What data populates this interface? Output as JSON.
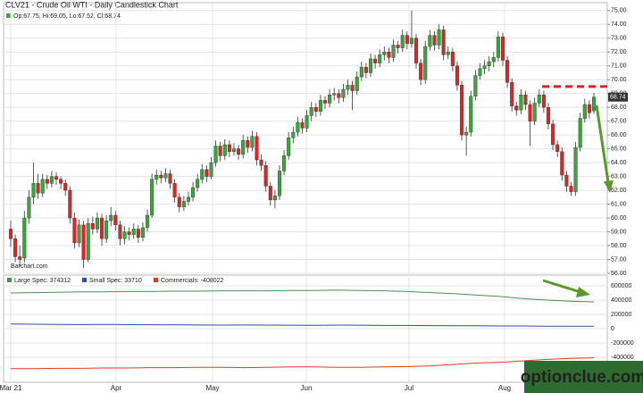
{
  "chart_data": {
    "type": "candlestick",
    "title": "CLV21 - Crude Oil WTI - Daily Candlestick Chart",
    "ohlc_legend": "Op:67.75, Hi:69.05, Lo:67.52, Cl:68.74",
    "watermark": "Barchart.com",
    "logo": "optionclue.com",
    "up_color": "#3aa63a",
    "down_color": "#d92626",
    "level_line": 69.5,
    "level_color": "#e02020",
    "grid": true,
    "x_labels": [
      "Mar 21",
      "Apr",
      "May",
      "Jun",
      "Jul",
      "Aug"
    ],
    "ylim": [
      56,
      75.5
    ],
    "yticks": [
      {
        "value": 56,
        "label": "56.00"
      },
      {
        "value": 57,
        "label": "57.00"
      },
      {
        "value": 58,
        "label": "58.00"
      },
      {
        "value": 59,
        "label": "59.00"
      },
      {
        "value": 60,
        "label": "60.00"
      },
      {
        "value": 61,
        "label": "61.00"
      },
      {
        "value": 62,
        "label": "62.00"
      },
      {
        "value": 63,
        "label": "63.00"
      },
      {
        "value": 64,
        "label": "64.00"
      },
      {
        "value": 65,
        "label": "65.00"
      },
      {
        "value": 66,
        "label": "66.00"
      },
      {
        "value": 67,
        "label": "67.00"
      },
      {
        "value": 68,
        "label": "68.00"
      },
      {
        "value": 69,
        "label": "69.00"
      },
      {
        "value": 70,
        "label": "70.00"
      },
      {
        "value": 71,
        "label": "71.00"
      },
      {
        "value": 72,
        "label": "72.00"
      },
      {
        "value": 73,
        "label": "73.00"
      },
      {
        "value": 74,
        "label": "74.00"
      },
      {
        "value": 75,
        "label": "75.00"
      }
    ],
    "ohlc": [
      [
        59.2,
        59.8,
        57.9,
        58.5
      ],
      [
        58.5,
        58.8,
        56.8,
        57.2
      ],
      [
        57.2,
        58.0,
        56.5,
        57.0
      ],
      [
        57.1,
        60.5,
        56.8,
        60.0
      ],
      [
        60.0,
        62.0,
        59.6,
        61.5
      ],
      [
        61.5,
        64.0,
        61.0,
        62.5
      ],
      [
        62.5,
        63.2,
        61.4,
        61.8
      ],
      [
        61.8,
        63.2,
        61.5,
        62.8
      ],
      [
        62.8,
        63.1,
        62.1,
        62.5
      ],
      [
        62.5,
        63.4,
        62.2,
        63.0
      ],
      [
        63.0,
        63.3,
        62.4,
        62.8
      ],
      [
        62.8,
        63.0,
        62.1,
        62.5
      ],
      [
        62.5,
        62.8,
        61.6,
        62.0
      ],
      [
        62.0,
        62.3,
        59.6,
        60.0
      ],
      [
        60.0,
        60.4,
        57.8,
        58.2
      ],
      [
        58.2,
        59.9,
        57.9,
        59.5
      ],
      [
        59.5,
        59.8,
        56.4,
        57.0
      ],
      [
        57.0,
        60.0,
        56.8,
        59.6
      ],
      [
        59.6,
        60.1,
        58.8,
        59.2
      ],
      [
        59.2,
        60.4,
        58.9,
        60.0
      ],
      [
        60.0,
        60.3,
        58.0,
        58.5
      ],
      [
        58.5,
        60.2,
        58.2,
        59.8
      ],
      [
        59.8,
        60.8,
        59.4,
        60.2
      ],
      [
        60.2,
        60.5,
        59.1,
        59.5
      ],
      [
        59.5,
        59.8,
        58.0,
        58.5
      ],
      [
        58.5,
        59.4,
        58.1,
        59.0
      ],
      [
        59.0,
        59.3,
        58.4,
        58.8
      ],
      [
        58.8,
        59.6,
        58.5,
        59.2
      ],
      [
        59.2,
        59.5,
        58.2,
        58.6
      ],
      [
        58.6,
        59.7,
        58.3,
        59.3
      ],
      [
        59.3,
        60.6,
        59.0,
        60.2
      ],
      [
        60.2,
        63.2,
        60.0,
        62.8
      ],
      [
        62.8,
        63.5,
        62.4,
        63.1
      ],
      [
        63.1,
        63.4,
        62.5,
        62.9
      ],
      [
        62.9,
        63.6,
        62.6,
        63.2
      ],
      [
        63.2,
        63.5,
        62.1,
        62.5
      ],
      [
        62.5,
        62.8,
        61.1,
        61.5
      ],
      [
        61.5,
        61.8,
        60.4,
        60.8
      ],
      [
        60.8,
        61.6,
        60.5,
        61.2
      ],
      [
        61.2,
        61.9,
        60.9,
        61.5
      ],
      [
        61.5,
        62.6,
        61.2,
        62.2
      ],
      [
        62.2,
        63.2,
        61.9,
        62.8
      ],
      [
        62.8,
        63.9,
        62.5,
        63.5
      ],
      [
        63.5,
        63.8,
        62.6,
        63.0
      ],
      [
        63.0,
        64.4,
        62.8,
        64.0
      ],
      [
        64.0,
        65.6,
        63.7,
        65.2
      ],
      [
        65.2,
        65.5,
        64.1,
        64.5
      ],
      [
        64.5,
        65.7,
        64.2,
        65.3
      ],
      [
        65.3,
        65.6,
        64.4,
        64.8
      ],
      [
        64.8,
        65.4,
        64.5,
        65.0
      ],
      [
        65.0,
        65.3,
        64.2,
        64.6
      ],
      [
        64.6,
        66.0,
        64.3,
        65.6
      ],
      [
        65.6,
        65.9,
        64.7,
        65.1
      ],
      [
        65.1,
        66.3,
        64.8,
        65.9
      ],
      [
        65.9,
        66.2,
        63.8,
        64.2
      ],
      [
        64.2,
        64.6,
        63.4,
        63.8
      ],
      [
        63.8,
        64.1,
        61.9,
        62.3
      ],
      [
        62.3,
        62.6,
        60.9,
        61.3
      ],
      [
        61.3,
        62.0,
        60.7,
        61.6
      ],
      [
        61.6,
        63.8,
        61.3,
        63.4
      ],
      [
        63.4,
        64.9,
        63.1,
        64.5
      ],
      [
        64.5,
        66.2,
        64.2,
        65.8
      ],
      [
        65.8,
        66.6,
        65.4,
        66.2
      ],
      [
        66.2,
        67.3,
        65.9,
        66.9
      ],
      [
        66.9,
        67.2,
        66.1,
        66.5
      ],
      [
        66.5,
        67.8,
        66.2,
        67.4
      ],
      [
        67.4,
        68.4,
        67.0,
        68.0
      ],
      [
        68.0,
        68.3,
        67.3,
        67.7
      ],
      [
        67.7,
        68.9,
        67.4,
        68.5
      ],
      [
        68.5,
        68.8,
        67.9,
        68.3
      ],
      [
        68.3,
        69.3,
        68.0,
        68.9
      ],
      [
        68.9,
        69.4,
        68.5,
        69.0
      ],
      [
        69.0,
        69.3,
        68.3,
        68.7
      ],
      [
        68.7,
        69.7,
        68.4,
        69.3
      ],
      [
        69.3,
        70.0,
        68.9,
        69.6
      ],
      [
        69.6,
        69.9,
        67.8,
        69.2
      ],
      [
        69.2,
        70.6,
        68.9,
        70.2
      ],
      [
        70.2,
        71.3,
        69.9,
        70.9
      ],
      [
        70.9,
        71.2,
        70.1,
        70.5
      ],
      [
        70.5,
        71.9,
        70.2,
        71.5
      ],
      [
        71.5,
        71.8,
        70.8,
        71.2
      ],
      [
        71.2,
        72.2,
        70.9,
        71.8
      ],
      [
        71.8,
        72.4,
        71.4,
        72.0
      ],
      [
        72.0,
        72.3,
        71.2,
        71.6
      ],
      [
        71.6,
        72.9,
        71.3,
        72.5
      ],
      [
        72.5,
        72.8,
        71.9,
        72.3
      ],
      [
        72.3,
        73.6,
        72.0,
        73.2
      ],
      [
        73.2,
        73.5,
        72.2,
        72.6
      ],
      [
        72.6,
        75.0,
        72.3,
        73.0
      ],
      [
        73.0,
        73.3,
        70.8,
        71.2
      ],
      [
        71.2,
        71.5,
        69.6,
        70.0
      ],
      [
        70.0,
        72.8,
        69.7,
        72.4
      ],
      [
        72.4,
        73.6,
        72.1,
        73.2
      ],
      [
        73.2,
        73.5,
        72.1,
        72.5
      ],
      [
        72.5,
        74.0,
        72.2,
        73.6
      ],
      [
        73.6,
        73.9,
        71.4,
        71.8
      ],
      [
        71.8,
        72.4,
        71.5,
        72.0
      ],
      [
        72.0,
        72.3,
        70.6,
        71.0
      ],
      [
        71.0,
        71.3,
        69.2,
        69.6
      ],
      [
        69.6,
        69.9,
        65.6,
        66.0
      ],
      [
        66.0,
        66.6,
        64.5,
        66.2
      ],
      [
        66.2,
        69.2,
        65.9,
        68.8
      ],
      [
        68.8,
        70.7,
        68.5,
        70.3
      ],
      [
        70.3,
        71.2,
        70.0,
        70.8
      ],
      [
        70.8,
        71.4,
        70.4,
        71.0
      ],
      [
        71.0,
        71.7,
        70.6,
        71.3
      ],
      [
        71.3,
        72.0,
        70.9,
        71.6
      ],
      [
        71.6,
        73.5,
        71.3,
        73.1
      ],
      [
        73.1,
        73.4,
        71.0,
        71.4
      ],
      [
        71.4,
        71.7,
        69.4,
        69.8
      ],
      [
        69.8,
        70.1,
        67.7,
        68.1
      ],
      [
        68.1,
        68.4,
        67.4,
        67.8
      ],
      [
        67.8,
        69.3,
        67.5,
        68.9
      ],
      [
        68.9,
        69.2,
        67.8,
        68.2
      ],
      [
        68.2,
        68.5,
        65.2,
        67.0
      ],
      [
        67.0,
        68.7,
        66.7,
        68.3
      ],
      [
        68.3,
        69.3,
        68.0,
        68.9
      ],
      [
        68.9,
        69.2,
        67.6,
        68.0
      ],
      [
        68.0,
        68.3,
        66.4,
        66.8
      ],
      [
        66.8,
        67.1,
        64.9,
        65.3
      ],
      [
        65.3,
        65.6,
        64.4,
        64.8
      ],
      [
        64.8,
        65.1,
        62.7,
        63.1
      ],
      [
        63.1,
        63.4,
        61.9,
        62.3
      ],
      [
        62.3,
        62.6,
        61.6,
        61.9
      ],
      [
        61.9,
        65.5,
        61.6,
        65.1
      ],
      [
        65.1,
        67.6,
        64.8,
        67.2
      ],
      [
        67.2,
        68.6,
        66.9,
        68.2
      ],
      [
        68.2,
        68.5,
        67.2,
        67.6
      ],
      [
        67.75,
        69.05,
        67.52,
        68.74
      ]
    ],
    "cot": {
      "type": "line",
      "y2lim": [
        -750000,
        750000
      ],
      "y2ticks": [
        600000,
        400000,
        200000,
        0,
        -200000,
        -400000
      ],
      "series": [
        {
          "name": "Large Spec: 374312",
          "color": "#4e8f4e",
          "values": [
            500000,
            505000,
            510000,
            515000,
            515000,
            520000,
            520000,
            525000,
            525000,
            530000,
            530000,
            530000,
            535000,
            535000,
            540000,
            535000,
            530000,
            520000,
            505000,
            490000,
            470000,
            450000,
            420000,
            400000,
            385000,
            374312
          ]
        },
        {
          "name": "Small Spec: 33710",
          "color": "#2f4f9f",
          "values": [
            65000,
            62000,
            60000,
            58000,
            60000,
            57000,
            55000,
            55000,
            52000,
            50000,
            52000,
            50000,
            48000,
            47000,
            50000,
            48000,
            45000,
            45000,
            42000,
            40000,
            40000,
            38000,
            37000,
            35000,
            34000,
            33710
          ]
        },
        {
          "name": "Commercials: -408022",
          "color": "#e03a2a",
          "values": [
            -560000,
            -560000,
            -555000,
            -555000,
            -550000,
            -550000,
            -545000,
            -545000,
            -540000,
            -540000,
            -545000,
            -540000,
            -535000,
            -535000,
            -540000,
            -540000,
            -535000,
            -530000,
            -520000,
            -500000,
            -480000,
            -470000,
            -450000,
            -430000,
            -415000,
            -408022
          ]
        }
      ]
    }
  }
}
